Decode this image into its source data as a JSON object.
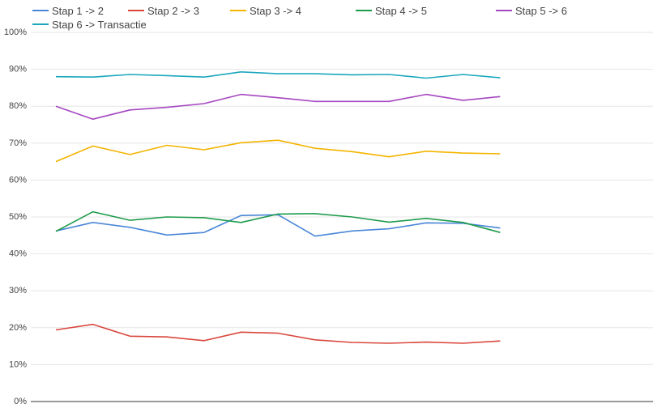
{
  "chart_data": {
    "type": "line",
    "title": "",
    "xlabel": "",
    "ylabel": "",
    "ylim": [
      0,
      100
    ],
    "yticks": [
      "0%",
      "10%",
      "20%",
      "30%",
      "40%",
      "50%",
      "60%",
      "70%",
      "80%",
      "90%",
      "100%"
    ],
    "grid": true,
    "legend_position": "top",
    "series": [
      {
        "name": "Stap 1 -> 2",
        "color": "#4a86d8",
        "values": [
          46.2,
          48.5,
          47.2,
          45.1,
          45.8,
          50.4,
          50.6,
          44.8,
          46.2,
          46.8,
          48.4,
          48.3,
          47.0
        ]
      },
      {
        "name": "Stap 2 -> 3",
        "color": "#d9473c",
        "values": [
          19.4,
          20.9,
          17.7,
          17.5,
          16.5,
          18.8,
          18.5,
          16.7,
          16.0,
          15.8,
          16.1,
          15.8,
          16.4
        ]
      },
      {
        "name": "Stap 3 -> 4",
        "color": "#f4b400",
        "values": [
          65.0,
          69.2,
          66.9,
          69.4,
          68.2,
          70.1,
          70.8,
          68.6,
          67.7,
          66.3,
          67.8,
          67.3,
          67.1
        ]
      },
      {
        "name": "Stap 4 -> 5",
        "color": "#1e9b4b",
        "values": [
          46.1,
          51.4,
          49.1,
          50.0,
          49.8,
          48.5,
          50.8,
          50.9,
          50.0,
          48.6,
          49.6,
          48.5,
          45.8
        ]
      },
      {
        "name": "Stap 5 -> 6",
        "color": "#a547c0",
        "values": [
          80.0,
          76.5,
          79.0,
          79.7,
          80.7,
          83.2,
          82.3,
          81.3,
          81.3,
          81.3,
          83.2,
          81.6,
          82.6
        ]
      },
      {
        "name": "Stap 6 -> Transactie",
        "color": "#1ba7bd",
        "values": [
          88.0,
          87.9,
          88.6,
          88.3,
          87.9,
          89.3,
          88.8,
          88.8,
          88.5,
          88.6,
          87.6,
          88.6,
          87.7
        ]
      }
    ]
  }
}
